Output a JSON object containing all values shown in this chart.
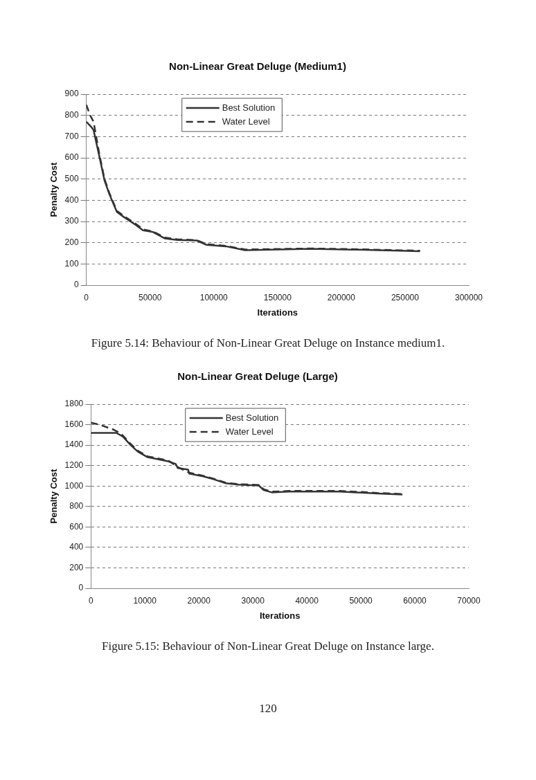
{
  "chart_data": [
    {
      "type": "line",
      "title": "Non-Linear Great Deluge (Medium1)",
      "xlabel": "Iterations",
      "ylabel": "Penalty Cost",
      "xlim": [
        0,
        300000
      ],
      "xticks": [
        0,
        50000,
        100000,
        150000,
        200000,
        250000,
        300000
      ],
      "ylim": [
        0,
        900
      ],
      "yticks": [
        0,
        100,
        200,
        300,
        400,
        500,
        600,
        700,
        800,
        900
      ],
      "grid": "y",
      "legend": "top",
      "marker": "none",
      "annotations": [
        "Figure 5.14: Behaviour of Non-Linear Great Deluge on Instance medium1."
      ],
      "series": [
        {
          "name": "Best Solution",
          "color": "#333333",
          "line_style": "solid",
          "x": [
            0,
            4000,
            5700,
            10300,
            14300,
            18000,
            24000,
            29700,
            39000,
            44600,
            52400,
            61700,
            71400,
            86700,
            94300,
            109500,
            124500,
            157000,
            176000,
            214000,
            261700
          ],
          "values": [
            770,
            745,
            730,
            605,
            493,
            430,
            345,
            320,
            283,
            258,
            250,
            220,
            213,
            210,
            190,
            183,
            165,
            169,
            171,
            167,
            160
          ]
        },
        {
          "name": "Water Level",
          "color": "#333333",
          "line_style": "dashed",
          "x": [
            0,
            3000,
            5700,
            10300,
            14300,
            18000,
            24000,
            29700,
            39000,
            44600,
            52400,
            61700,
            71400,
            86700,
            94300,
            109500,
            124500,
            157000,
            176000,
            214000,
            261700
          ],
          "values": [
            850,
            800,
            770,
            615,
            500,
            435,
            350,
            325,
            288,
            262,
            253,
            224,
            216,
            212,
            193,
            185,
            168,
            171,
            173,
            169,
            162
          ]
        }
      ]
    },
    {
      "type": "line",
      "title": "Non-Linear Great Deluge (Large)",
      "xlabel": "Iterations",
      "ylabel": "Penalty Cost",
      "xlim": [
        0,
        70000
      ],
      "xticks": [
        0,
        10000,
        20000,
        30000,
        40000,
        50000,
        60000,
        70000
      ],
      "ylim": [
        0,
        1800
      ],
      "yticks": [
        0,
        200,
        400,
        600,
        800,
        1000,
        1200,
        1400,
        1600,
        1800
      ],
      "grid": "y",
      "legend": "top",
      "marker": "none",
      "annotations": [
        "Figure 5.15: Behaviour of Non-Linear Great Deluge on Instance large.",
        "120"
      ],
      "series": [
        {
          "name": "Best Solution",
          "color": "#333333",
          "line_style": "solid",
          "x": [
            0,
            4700,
            5900,
            7300,
            8700,
            10500,
            14300,
            15700,
            16100,
            18000,
            18200,
            20800,
            22700,
            25000,
            27400,
            31100,
            32000,
            33500,
            36700,
            46000,
            50700,
            53000,
            57700
          ],
          "values": [
            1520,
            1519,
            1484,
            1403,
            1336,
            1282,
            1242,
            1215,
            1175,
            1161,
            1121,
            1094,
            1067,
            1027,
            1013,
            1005,
            960,
            938,
            946,
            946,
            933,
            927,
            917
          ]
        },
        {
          "name": "Water Level",
          "color": "#333333",
          "line_style": "dashed",
          "x": [
            0,
            1600,
            4200,
            5600,
            7300,
            8700,
            10500,
            14300,
            16100,
            18200,
            20800,
            22700,
            25000,
            27400,
            31100,
            32000,
            33500,
            36700,
            46000,
            50700,
            53000,
            57700
          ],
          "values": [
            1619,
            1600,
            1551,
            1511,
            1415,
            1345,
            1290,
            1250,
            1185,
            1130,
            1100,
            1072,
            1032,
            1018,
            1010,
            968,
            945,
            952,
            952,
            940,
            932,
            922
          ]
        }
      ]
    }
  ]
}
